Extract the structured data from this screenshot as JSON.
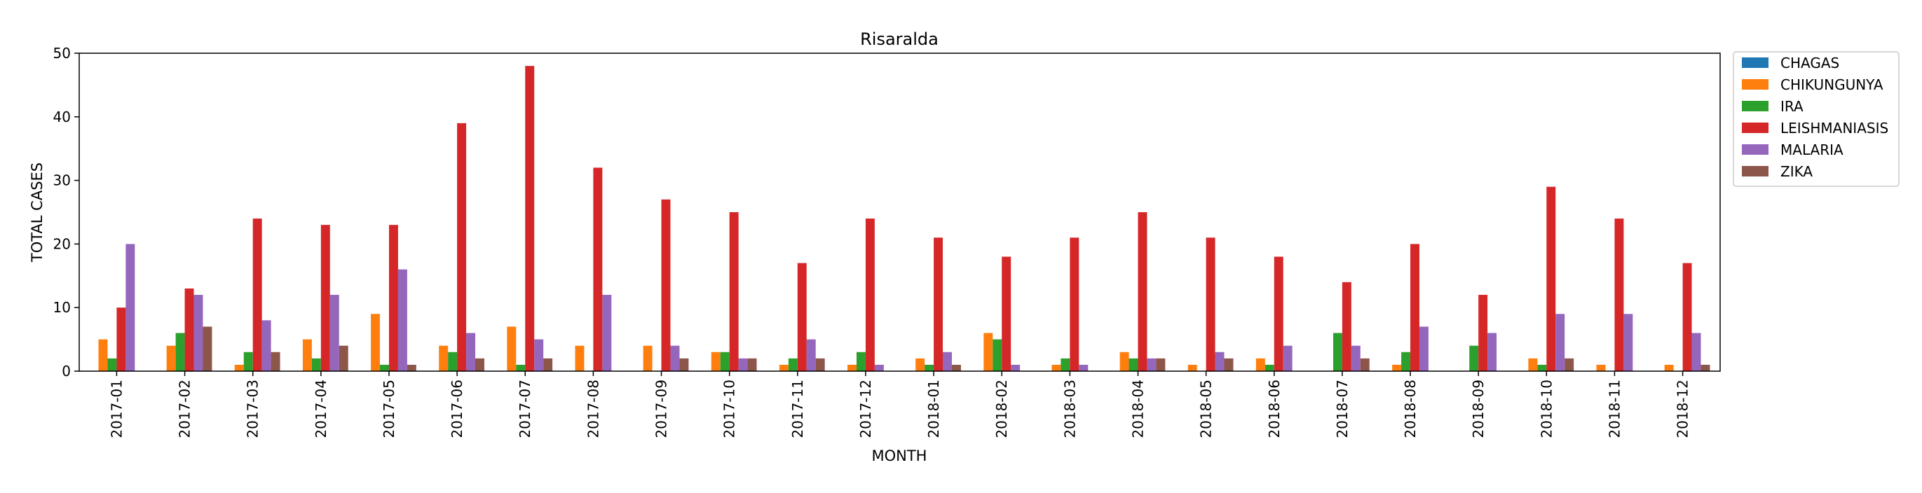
{
  "chart_data": {
    "type": "bar",
    "title": "Risaralda",
    "xlabel": "MONTH",
    "ylabel": "TOTAL CASES",
    "ylim": [
      0,
      50
    ],
    "yticks": [
      0,
      10,
      20,
      30,
      40,
      50
    ],
    "grid": false,
    "legend_position": "outside-top-right",
    "categories": [
      "2017-01",
      "2017-02",
      "2017-03",
      "2017-04",
      "2017-05",
      "2017-06",
      "2017-07",
      "2017-08",
      "2017-09",
      "2017-10",
      "2017-11",
      "2017-12",
      "2018-01",
      "2018-02",
      "2018-03",
      "2018-04",
      "2018-05",
      "2018-06",
      "2018-07",
      "2018-08",
      "2018-09",
      "2018-10",
      "2018-11",
      "2018-12"
    ],
    "series": [
      {
        "name": "CHAGAS",
        "color": "#1f77b4",
        "values": [
          0,
          0,
          0,
          0,
          0,
          0,
          0,
          0,
          0,
          0,
          0,
          0,
          0,
          0,
          0,
          0,
          0,
          0,
          0,
          0,
          0,
          0,
          0,
          0
        ]
      },
      {
        "name": "CHIKUNGUNYA",
        "color": "#ff7f0e",
        "values": [
          5,
          4,
          1,
          5,
          9,
          4,
          7,
          4,
          4,
          3,
          1,
          1,
          2,
          6,
          1,
          3,
          1,
          2,
          0,
          1,
          0,
          2,
          1,
          1
        ]
      },
      {
        "name": "IRA",
        "color": "#2ca02c",
        "values": [
          2,
          6,
          3,
          2,
          1,
          3,
          1,
          0,
          0,
          3,
          2,
          3,
          1,
          5,
          2,
          2,
          0,
          1,
          6,
          3,
          4,
          1,
          0,
          0
        ]
      },
      {
        "name": "LEISHMANIASIS",
        "color": "#d62728",
        "values": [
          10,
          13,
          24,
          23,
          23,
          39,
          48,
          32,
          27,
          25,
          17,
          24,
          21,
          18,
          21,
          25,
          21,
          18,
          14,
          20,
          12,
          29,
          24,
          17
        ]
      },
      {
        "name": "MALARIA",
        "color": "#9467bd",
        "values": [
          20,
          12,
          8,
          12,
          16,
          6,
          5,
          12,
          4,
          2,
          5,
          1,
          3,
          1,
          1,
          2,
          3,
          4,
          4,
          7,
          6,
          9,
          9,
          6
        ]
      },
      {
        "name": "ZIKA",
        "color": "#8c564b",
        "values": [
          0,
          7,
          3,
          4,
          1,
          2,
          2,
          0,
          2,
          2,
          2,
          0,
          1,
          0,
          0,
          2,
          2,
          0,
          2,
          0,
          0,
          2,
          0,
          1
        ]
      }
    ]
  }
}
